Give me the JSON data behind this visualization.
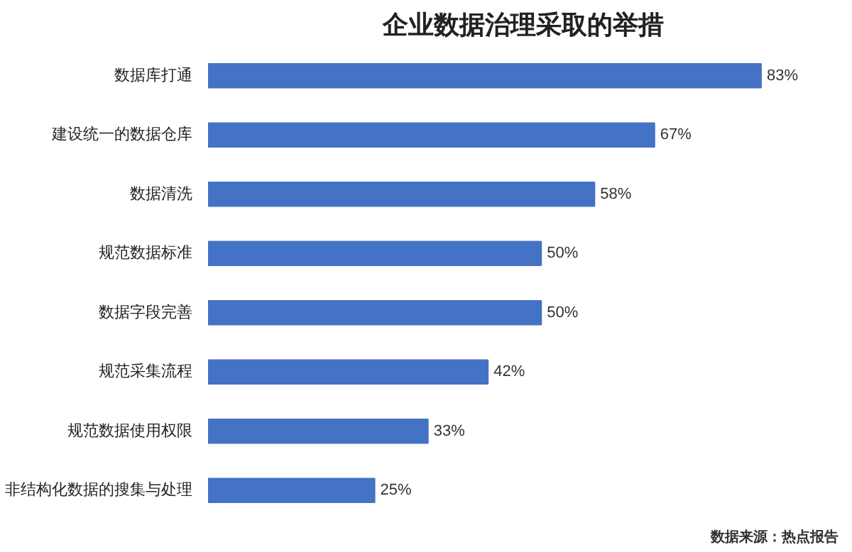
{
  "chart_data": {
    "type": "bar",
    "orientation": "horizontal",
    "title": "企业数据治理采取的举措",
    "categories": [
      "数据库打通",
      "建设统一的数据仓库",
      "数据清洗",
      "规范数据标准",
      "数据字段完善",
      "规范采集流程",
      "规范数据使用权限",
      "非结构化数据的搜集与处理"
    ],
    "values": [
      83,
      67,
      58,
      50,
      50,
      42,
      33,
      25
    ],
    "value_labels": [
      "83%",
      "67%",
      "58%",
      "50%",
      "50%",
      "42%",
      "33%",
      "25%"
    ],
    "color": "#4472c4",
    "grid": false,
    "annotations": [
      "数据来源：热点报告"
    ]
  }
}
